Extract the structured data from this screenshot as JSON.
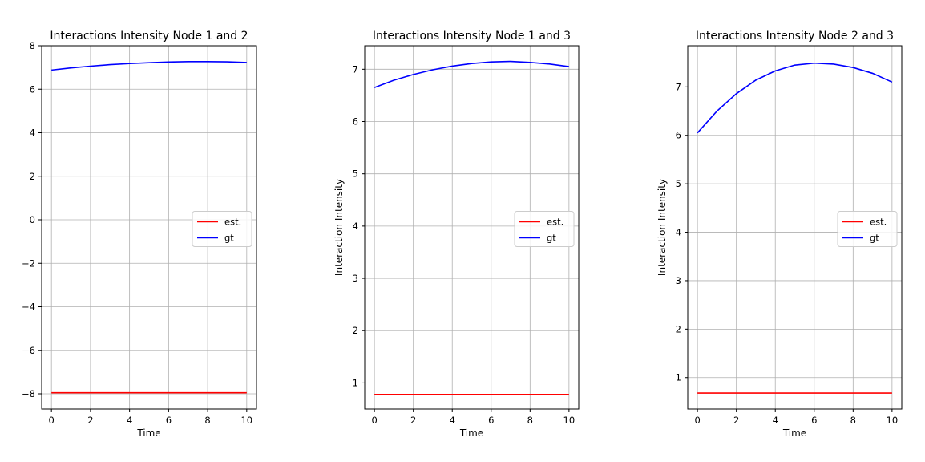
{
  "chart_data": [
    {
      "type": "line",
      "title": "Interactions Intensity Node 1 and 2",
      "xlabel": "Time",
      "ylabel": "",
      "xlim": [
        -0.5,
        10.5
      ],
      "ylim": [
        -8.7,
        8.0
      ],
      "xticks": [
        0,
        2,
        4,
        6,
        8,
        10
      ],
      "yticks": [
        -8,
        -6,
        -4,
        -2,
        0,
        2,
        4,
        6,
        8
      ],
      "grid": true,
      "legend_position": "center-right",
      "series": [
        {
          "name": "est.",
          "color": "#ff0000",
          "x": [
            0,
            1,
            2,
            3,
            4,
            5,
            6,
            7,
            8,
            9,
            10
          ],
          "y": [
            -7.95,
            -7.95,
            -7.95,
            -7.95,
            -7.95,
            -7.95,
            -7.95,
            -7.95,
            -7.95,
            -7.95,
            -7.95
          ]
        },
        {
          "name": "gt",
          "color": "#0000ff",
          "x": [
            0,
            1,
            2,
            3,
            4,
            5,
            6,
            7,
            8,
            9,
            10
          ],
          "y": [
            6.88,
            6.98,
            7.06,
            7.13,
            7.18,
            7.22,
            7.25,
            7.27,
            7.27,
            7.26,
            7.23
          ]
        }
      ]
    },
    {
      "type": "line",
      "title": "Interactions Intensity Node 1 and 3",
      "xlabel": "Time",
      "ylabel": "Interaction Intensity",
      "xlim": [
        -0.5,
        10.5
      ],
      "ylim": [
        0.5,
        7.45
      ],
      "xticks": [
        0,
        2,
        4,
        6,
        8,
        10
      ],
      "yticks": [
        1,
        2,
        3,
        4,
        5,
        6,
        7
      ],
      "grid": true,
      "legend_position": "center-right",
      "series": [
        {
          "name": "est.",
          "color": "#ff0000",
          "x": [
            0,
            1,
            2,
            3,
            4,
            5,
            6,
            7,
            8,
            9,
            10
          ],
          "y": [
            0.78,
            0.78,
            0.78,
            0.78,
            0.78,
            0.78,
            0.78,
            0.78,
            0.78,
            0.78,
            0.78
          ]
        },
        {
          "name": "gt",
          "color": "#0000ff",
          "x": [
            0,
            1,
            2,
            3,
            4,
            5,
            6,
            7,
            8,
            9,
            10
          ],
          "y": [
            6.65,
            6.79,
            6.9,
            6.99,
            7.06,
            7.11,
            7.14,
            7.15,
            7.13,
            7.1,
            7.05
          ]
        }
      ]
    },
    {
      "type": "line",
      "title": "Interactions Intensity Node 2 and 3",
      "xlabel": "Time",
      "ylabel": "Interaction Intensity",
      "xlim": [
        -0.5,
        10.5
      ],
      "ylim": [
        0.35,
        7.85
      ],
      "xticks": [
        0,
        2,
        4,
        6,
        8,
        10
      ],
      "yticks": [
        1,
        2,
        3,
        4,
        5,
        6,
        7
      ],
      "grid": true,
      "legend_position": "center-right",
      "series": [
        {
          "name": "est.",
          "color": "#ff0000",
          "x": [
            0,
            1,
            2,
            3,
            4,
            5,
            6,
            7,
            8,
            9,
            10
          ],
          "y": [
            0.68,
            0.68,
            0.68,
            0.68,
            0.68,
            0.68,
            0.68,
            0.68,
            0.68,
            0.68,
            0.68
          ]
        },
        {
          "name": "gt",
          "color": "#0000ff",
          "x": [
            0,
            1,
            2,
            3,
            4,
            5,
            6,
            7,
            8,
            9,
            10
          ],
          "y": [
            6.05,
            6.5,
            6.86,
            7.14,
            7.33,
            7.45,
            7.49,
            7.47,
            7.4,
            7.28,
            7.1
          ]
        }
      ]
    }
  ]
}
